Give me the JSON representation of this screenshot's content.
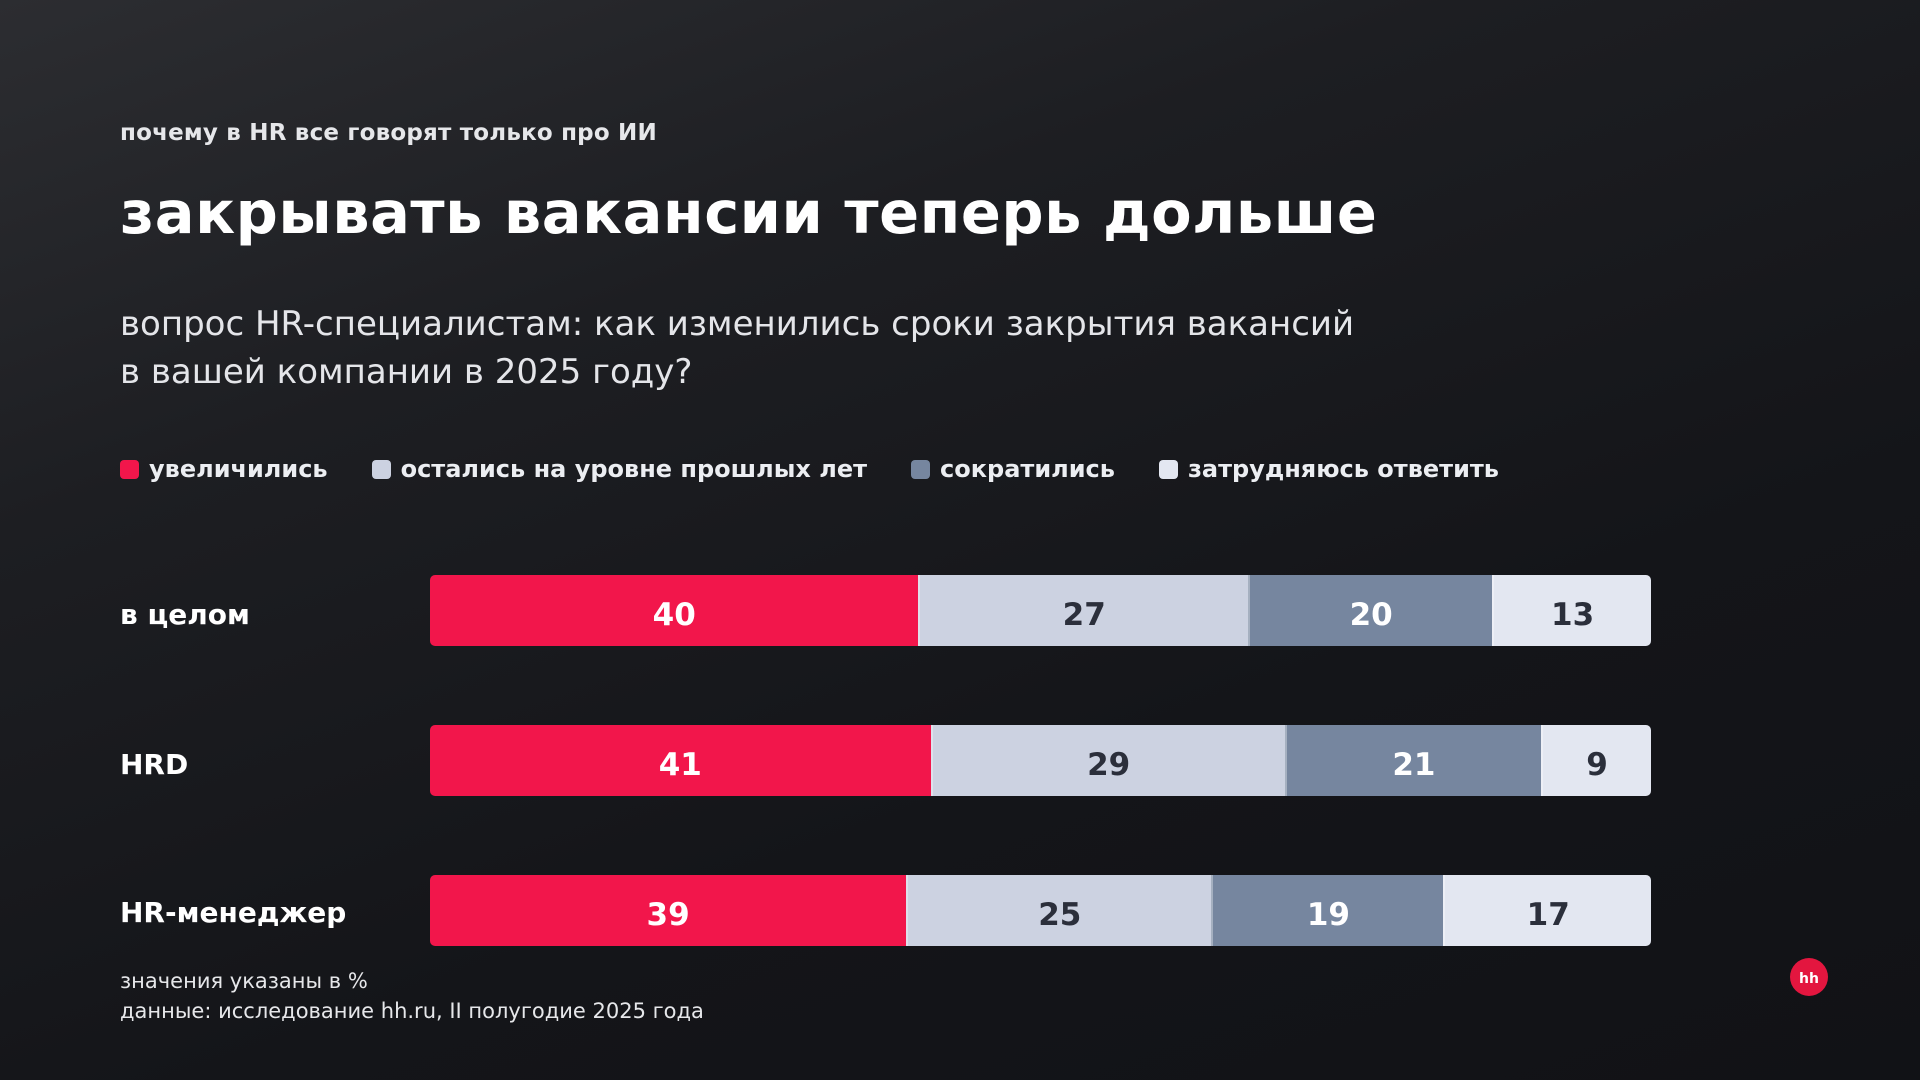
{
  "header": {
    "kicker": "почему в HR все говорят только про ИИ",
    "title": "закрывать вакансии теперь дольше",
    "question_line1": "вопрос HR-специалистам: как изменились сроки закрытия вакансий",
    "question_line2": "в вашей компании в 2025 году?"
  },
  "legend": [
    {
      "label": "увеличились",
      "color": "#f2164b"
    },
    {
      "label": "остались на уровне прошлых лет",
      "color": "#ccd2e1"
    },
    {
      "label": "сократились",
      "color": "#76869f"
    },
    {
      "label": "затрудняюсь ответить",
      "color": "#e3e7f1"
    }
  ],
  "chart_data": {
    "type": "bar",
    "orientation": "horizontal",
    "stacked": true,
    "categories": [
      "в целом",
      "HRD",
      "HR-менеджер"
    ],
    "series": [
      {
        "name": "увеличились",
        "values": [
          40,
          41,
          39
        ],
        "color": "#f2164b"
      },
      {
        "name": "остались на уровне прошлых лет",
        "values": [
          27,
          29,
          25
        ],
        "color": "#ccd2e1"
      },
      {
        "name": "сократились",
        "values": [
          20,
          21,
          19
        ],
        "color": "#76869f"
      },
      {
        "name": "затрудняюсь ответить",
        "values": [
          13,
          9,
          17
        ],
        "color": "#e3e7f1"
      }
    ],
    "xlim": [
      0,
      100
    ],
    "grid": false,
    "legend_position": "top-left"
  },
  "footer": {
    "note_units": "значения указаны в %",
    "note_source": "данные: исследование hh.ru, II полугодие 2025 года"
  },
  "logo": {
    "text": "hh",
    "color": "#e3163f"
  }
}
